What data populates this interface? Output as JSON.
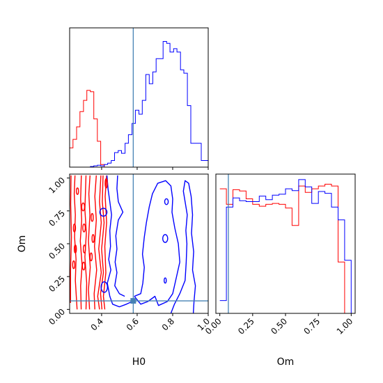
{
  "figure": {
    "background": "#ffffff"
  },
  "colors": {
    "red": "#ff0000",
    "blue": "#0000ff",
    "truth": "#4682b4",
    "axis": "#000000"
  },
  "chart_data": [
    {
      "panel": "H0-marginal",
      "type": "step-histogram",
      "xlim": [
        0.22,
        1.0
      ],
      "bin_edges": [
        0.22,
        0.239,
        0.259,
        0.278,
        0.298,
        0.317,
        0.337,
        0.356,
        0.376,
        0.395,
        0.415,
        0.434,
        0.454,
        0.473,
        0.493,
        0.512,
        0.532,
        0.551,
        0.571,
        0.59,
        0.61,
        0.629,
        0.649,
        0.668,
        0.688,
        0.707,
        0.727,
        0.746,
        0.766,
        0.785,
        0.805,
        0.824,
        0.844,
        0.863,
        0.883,
        0.902,
        0.922,
        0.941,
        0.961,
        0.98,
        1.0
      ],
      "series": [
        {
          "color": "red",
          "values": [
            0.145,
            0.21,
            0.305,
            0.42,
            0.505,
            0.58,
            0.57,
            0.365,
            0.195,
            0.02,
            0,
            0,
            0,
            0,
            0,
            0,
            0,
            0,
            0,
            0,
            0,
            0,
            0,
            0,
            0,
            0,
            0,
            0,
            0,
            0,
            0,
            0,
            0,
            0,
            0,
            0,
            0,
            0,
            0,
            0
          ]
        },
        {
          "color": "blue",
          "values": [
            0,
            0,
            0,
            0,
            0,
            0,
            0.005,
            0.01,
            0.015,
            0.01,
            0.02,
            0.03,
            0.05,
            0.11,
            0.125,
            0.105,
            0.18,
            0.245,
            0.33,
            0.43,
            0.4,
            0.505,
            0.7,
            0.63,
            0.72,
            0.82,
            0.82,
            0.95,
            0.935,
            0.87,
            0.895,
            0.87,
            0.735,
            0.71,
            0.465,
            0.18,
            0.18,
            0.18,
            0.05,
            0.05
          ]
        }
      ],
      "truth": 0.578
    },
    {
      "panel": "Om-vs-H0",
      "type": "contour",
      "xlabel": "H0",
      "ylabel": "Om",
      "xlim": [
        0.22,
        1.0
      ],
      "ylim": [
        -0.03,
        1.03
      ],
      "xticks": [
        "0.4",
        "0.6",
        "0.8",
        "1.0"
      ],
      "yticks": [
        "0.00",
        "0.25",
        "0.50",
        "0.75",
        "1.00"
      ],
      "truth": {
        "x": 0.578,
        "y": 0.065
      },
      "contours": {
        "red": [
          [
            [
              0.225,
              0.05
            ],
            [
              0.225,
              0.3
            ],
            [
              0.23,
              0.55
            ],
            [
              0.226,
              0.8
            ],
            [
              0.228,
              1.02
            ]
          ],
          [
            [
              0.262,
              0.0
            ],
            [
              0.252,
              0.22
            ],
            [
              0.256,
              0.38
            ],
            [
              0.248,
              0.55
            ],
            [
              0.252,
              0.72
            ],
            [
              0.246,
              0.88
            ],
            [
              0.25,
              1.02
            ]
          ],
          [
            [
              0.285,
              0.0
            ],
            [
              0.282,
              0.18
            ],
            [
              0.29,
              0.34
            ],
            [
              0.28,
              0.52
            ],
            [
              0.288,
              0.68
            ],
            [
              0.282,
              0.84
            ],
            [
              0.286,
              1.02
            ]
          ],
          [
            [
              0.312,
              0.0
            ],
            [
              0.316,
              0.2
            ],
            [
              0.306,
              0.4
            ],
            [
              0.314,
              0.58
            ],
            [
              0.306,
              0.76
            ],
            [
              0.312,
              1.02
            ]
          ],
          [
            [
              0.332,
              0.0
            ],
            [
              0.326,
              0.15
            ],
            [
              0.336,
              0.32
            ],
            [
              0.326,
              0.52
            ],
            [
              0.334,
              0.72
            ],
            [
              0.328,
              0.88
            ],
            [
              0.335,
              1.02
            ]
          ],
          [
            [
              0.362,
              0.0
            ],
            [
              0.358,
              0.12
            ],
            [
              0.372,
              0.3
            ],
            [
              0.36,
              0.48
            ],
            [
              0.37,
              0.68
            ],
            [
              0.362,
              0.86
            ],
            [
              0.37,
              1.02
            ]
          ],
          [
            [
              0.388,
              0.0
            ],
            [
              0.378,
              0.1
            ],
            [
              0.398,
              0.28
            ],
            [
              0.384,
              0.46
            ],
            [
              0.398,
              0.66
            ],
            [
              0.388,
              0.82
            ],
            [
              0.396,
              1.02
            ]
          ],
          [
            [
              0.402,
              0.0
            ],
            [
              0.394,
              0.12
            ],
            [
              0.41,
              0.28
            ],
            [
              0.4,
              0.46
            ],
            [
              0.414,
              0.66
            ],
            [
              0.404,
              0.82
            ],
            [
              0.408,
              1.02
            ]
          ],
          [
            [
              0.418,
              0.0
            ],
            [
              0.41,
              0.1
            ],
            [
              0.424,
              0.28
            ],
            [
              0.418,
              0.48
            ],
            [
              0.428,
              0.66
            ],
            [
              0.42,
              0.86
            ],
            [
              0.428,
              1.02
            ]
          ]
        ],
        "red_small": [
          [
            0.247,
            0.62,
            0.006,
            0.03
          ],
          [
            0.252,
            0.46,
            0.006,
            0.03
          ],
          [
            0.243,
            0.34,
            0.006,
            0.03
          ],
          [
            0.296,
            0.78,
            0.008,
            0.03
          ],
          [
            0.301,
            0.62,
            0.007,
            0.03
          ],
          [
            0.303,
            0.46,
            0.006,
            0.03
          ],
          [
            0.299,
            0.33,
            0.007,
            0.03
          ],
          [
            0.347,
            0.7,
            0.006,
            0.03
          ],
          [
            0.352,
            0.54,
            0.006,
            0.03
          ],
          [
            0.341,
            0.4,
            0.006,
            0.03
          ],
          [
            0.264,
            0.9,
            0.006,
            0.025
          ],
          [
            0.426,
            0.96,
            0.006,
            0.035
          ]
        ],
        "blue": [
          [
            [
              0.43,
              1.02
            ],
            [
              0.436,
              0.92
            ],
            [
              0.446,
              0.82
            ],
            [
              0.456,
              0.72
            ],
            [
              0.446,
              0.6
            ],
            [
              0.45,
              0.48
            ],
            [
              0.44,
              0.38
            ],
            [
              0.452,
              0.3
            ],
            [
              0.432,
              0.2
            ],
            [
              0.446,
              0.1
            ],
            [
              0.462,
              0.04
            ],
            [
              0.5,
              0.02
            ],
            [
              0.54,
              0.04
            ],
            [
              0.572,
              0.06
            ]
          ],
          [
            [
              0.49,
              1.02
            ],
            [
              0.486,
              0.92
            ],
            [
              0.494,
              0.82
            ],
            [
              0.52,
              0.74
            ],
            [
              0.494,
              0.68
            ],
            [
              0.48,
              0.56
            ],
            [
              0.486,
              0.46
            ],
            [
              0.476,
              0.36
            ],
            [
              0.486,
              0.28
            ],
            [
              0.474,
              0.18
            ],
            [
              0.5,
              0.12
            ],
            [
              0.53,
              0.1
            ]
          ],
          [
            [
              0.584,
              0.1
            ],
            [
              0.62,
              0.12
            ],
            [
              0.632,
              0.2
            ],
            [
              0.64,
              0.32
            ],
            [
              0.63,
              0.42
            ],
            [
              0.64,
              0.55
            ],
            [
              0.652,
              0.66
            ],
            [
              0.668,
              0.78
            ],
            [
              0.686,
              0.88
            ],
            [
              0.716,
              0.96
            ],
            [
              0.76,
              0.98
            ],
            [
              0.79,
              0.94
            ],
            [
              0.8,
              0.84
            ],
            [
              0.796,
              0.74
            ],
            [
              0.812,
              0.62
            ],
            [
              0.832,
              0.5
            ],
            [
              0.84,
              0.36
            ],
            [
              0.82,
              0.24
            ],
            [
              0.8,
              0.12
            ],
            [
              0.77,
              0.06
            ],
            [
              0.72,
              0.03
            ],
            [
              0.7,
              0.1
            ],
            [
              0.66,
              0.06
            ],
            [
              0.62,
              0.04
            ],
            [
              0.584,
              0.1
            ]
          ],
          [
            [
              0.79,
              -0.03
            ],
            [
              0.81,
              0.04
            ],
            [
              0.84,
              0.12
            ],
            [
              0.87,
              0.22
            ],
            [
              0.876,
              0.36
            ],
            [
              0.88,
              0.5
            ],
            [
              0.874,
              0.6
            ],
            [
              0.882,
              0.72
            ],
            [
              0.87,
              0.82
            ],
            [
              0.86,
              0.9
            ],
            [
              0.87,
              0.98
            ],
            [
              0.89,
              0.96
            ],
            [
              0.904,
              0.86
            ],
            [
              0.912,
              0.72
            ],
            [
              0.906,
              0.58
            ],
            [
              0.918,
              0.44
            ],
            [
              0.912,
              0.3
            ],
            [
              0.928,
              0.18
            ],
            [
              0.92,
              0.06
            ],
            [
              0.916,
              -0.03
            ]
          ]
        ],
        "blue_small": [
          [
            0.41,
            0.74,
            0.02,
            0.03
          ],
          [
            0.415,
            0.17,
            0.018,
            0.04
          ],
          [
            0.758,
            0.54,
            0.014,
            0.03
          ],
          [
            0.765,
            0.82,
            0.01,
            0.022
          ],
          [
            0.758,
            0.22,
            0.006,
            0.02
          ]
        ]
      }
    },
    {
      "panel": "Om-marginal",
      "type": "step-histogram",
      "xlabel": "Om",
      "xlim": [
        -0.03,
        1.03
      ],
      "xticks": [
        "0.00",
        "0.25",
        "0.50",
        "0.75",
        "1.00"
      ],
      "bin_edges": [
        0.0,
        0.05,
        0.1,
        0.15,
        0.2,
        0.25,
        0.3,
        0.35,
        0.4,
        0.45,
        0.5,
        0.55,
        0.6,
        0.65,
        0.7,
        0.75,
        0.8,
        0.85,
        0.9,
        0.95,
        1.0
      ],
      "series": [
        {
          "color": "red",
          "values": [
            0.68,
            0.595,
            0.675,
            0.668,
            0.625,
            0.595,
            0.585,
            0.595,
            0.6,
            0.595,
            0.575,
            0.48,
            0.695,
            0.66,
            0.68,
            0.695,
            0.705,
            0.695,
            0.28,
            0.0
          ]
        },
        {
          "color": "blue",
          "values": [
            0.07,
            0.58,
            0.63,
            0.615,
            0.61,
            0.61,
            0.64,
            0.62,
            0.645,
            0.65,
            0.68,
            0.67,
            0.73,
            0.69,
            0.6,
            0.665,
            0.655,
            0.58,
            0.51,
            0.29
          ]
        }
      ],
      "ylim": [
        0,
        0.76
      ],
      "truth": 0.065
    }
  ]
}
